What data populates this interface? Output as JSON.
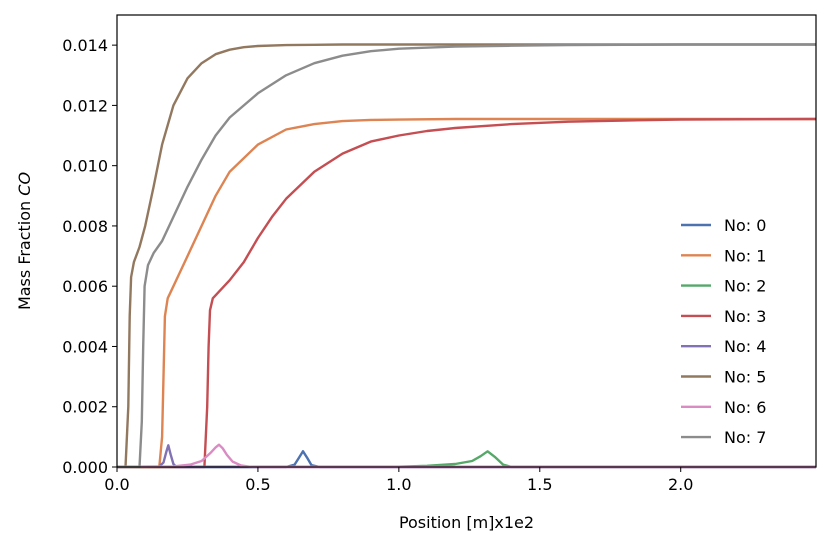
{
  "chart_data": {
    "type": "line",
    "title": "",
    "xlabel": "Position [m]x1e2",
    "ylabel_prefix": "Mass Fraction ",
    "ylabel_species": "CO",
    "xlim": [
      0.0,
      2.48
    ],
    "ylim": [
      0.0,
      0.015
    ],
    "x_ticks": [
      0.0,
      0.5,
      1.0,
      1.5,
      2.0
    ],
    "x_tick_labels": [
      "0.0",
      "0.5",
      "1.0",
      "1.5",
      "2.0"
    ],
    "y_ticks": [
      0.0,
      0.002,
      0.004,
      0.006,
      0.008,
      0.01,
      0.012,
      0.014
    ],
    "y_tick_labels": [
      "0.000",
      "0.002",
      "0.004",
      "0.006",
      "0.008",
      "0.010",
      "0.012",
      "0.014"
    ],
    "grid": false,
    "legend_position": "lower-right",
    "series": [
      {
        "name": "No: 0",
        "color": "#4c72b0",
        "x": [
          0.0,
          0.6,
          0.63,
          0.645,
          0.66,
          0.675,
          0.69,
          0.72,
          2.48
        ],
        "y": [
          0.0,
          0.0,
          8e-05,
          0.0003,
          0.00052,
          0.0003,
          6e-05,
          0.0,
          0.0
        ]
      },
      {
        "name": "No: 1",
        "color": "#dd8452",
        "x": [
          0.0,
          0.15,
          0.16,
          0.165,
          0.17,
          0.18,
          0.19,
          0.21,
          0.25,
          0.3,
          0.35,
          0.4,
          0.5,
          0.6,
          0.7,
          0.8,
          0.9,
          1.0,
          1.2,
          1.5,
          2.48
        ],
        "y": [
          0.0,
          0.0,
          0.001,
          0.003,
          0.005,
          0.0056,
          0.0058,
          0.0062,
          0.007,
          0.008,
          0.009,
          0.0098,
          0.0107,
          0.0112,
          0.01138,
          0.01148,
          0.01152,
          0.01153,
          0.01155,
          0.01155,
          0.01155
        ]
      },
      {
        "name": "No: 2",
        "color": "#55a868",
        "x": [
          0.0,
          1.0,
          1.1,
          1.2,
          1.26,
          1.29,
          1.315,
          1.34,
          1.37,
          1.4,
          2.48
        ],
        "y": [
          0.0,
          1e-05,
          4e-05,
          0.0001,
          0.0002,
          0.00036,
          0.00052,
          0.00034,
          8e-05,
          0.0,
          0.0
        ]
      },
      {
        "name": "No: 3",
        "color": "#c44e52",
        "x": [
          0.0,
          0.31,
          0.32,
          0.325,
          0.33,
          0.34,
          0.36,
          0.4,
          0.45,
          0.5,
          0.55,
          0.6,
          0.7,
          0.8,
          0.9,
          1.0,
          1.1,
          1.2,
          1.4,
          1.6,
          1.8,
          2.0,
          2.2,
          2.48
        ],
        "y": [
          0.0,
          0.0,
          0.002,
          0.004,
          0.0052,
          0.0056,
          0.0058,
          0.0062,
          0.0068,
          0.0076,
          0.0083,
          0.0089,
          0.0098,
          0.0104,
          0.0108,
          0.011,
          0.01115,
          0.01125,
          0.01138,
          0.01146,
          0.0115,
          0.01153,
          0.01154,
          0.01155
        ]
      },
      {
        "name": "No: 4",
        "color": "#8172b3",
        "x": [
          0.0,
          0.15,
          0.165,
          0.175,
          0.182,
          0.19,
          0.2,
          0.21,
          2.48
        ],
        "y": [
          0.0,
          2e-05,
          0.00015,
          0.0005,
          0.00072,
          0.00042,
          0.0001,
          0.0,
          0.0
        ]
      },
      {
        "name": "No: 5",
        "color": "#937860",
        "x": [
          0.0,
          0.03,
          0.04,
          0.045,
          0.05,
          0.06,
          0.08,
          0.1,
          0.13,
          0.16,
          0.2,
          0.25,
          0.3,
          0.35,
          0.4,
          0.45,
          0.5,
          0.6,
          0.7,
          0.8,
          1.0,
          1.2,
          2.48
        ],
        "y": [
          0.0,
          0.0,
          0.002,
          0.005,
          0.0063,
          0.0068,
          0.0073,
          0.008,
          0.0093,
          0.0107,
          0.012,
          0.0129,
          0.0134,
          0.0137,
          0.01385,
          0.01393,
          0.01397,
          0.014,
          0.01401,
          0.01402,
          0.01402,
          0.01402,
          0.01402
        ]
      },
      {
        "name": "No: 6",
        "color": "#da8bc3",
        "x": [
          0.0,
          0.2,
          0.26,
          0.3,
          0.33,
          0.35,
          0.362,
          0.375,
          0.39,
          0.41,
          0.44,
          0.47,
          0.5,
          2.48
        ],
        "y": [
          0.0,
          2e-05,
          8e-05,
          0.0002,
          0.00045,
          0.00065,
          0.00074,
          0.00062,
          0.0004,
          0.00018,
          5e-05,
          1e-05,
          0.0,
          0.0
        ]
      },
      {
        "name": "No: 7",
        "color": "#8c8c8c",
        "x": [
          0.0,
          0.08,
          0.088,
          0.093,
          0.098,
          0.11,
          0.13,
          0.16,
          0.2,
          0.25,
          0.3,
          0.35,
          0.4,
          0.5,
          0.6,
          0.7,
          0.8,
          0.9,
          1.0,
          1.2,
          1.4,
          1.6,
          1.8,
          2.0,
          2.48
        ],
        "y": [
          0.0,
          0.0,
          0.0015,
          0.004,
          0.006,
          0.0067,
          0.0071,
          0.0075,
          0.0083,
          0.0093,
          0.0102,
          0.011,
          0.0116,
          0.0124,
          0.013,
          0.0134,
          0.01365,
          0.0138,
          0.01388,
          0.01395,
          0.01398,
          0.014,
          0.01401,
          0.01402,
          0.01402
        ]
      }
    ]
  }
}
